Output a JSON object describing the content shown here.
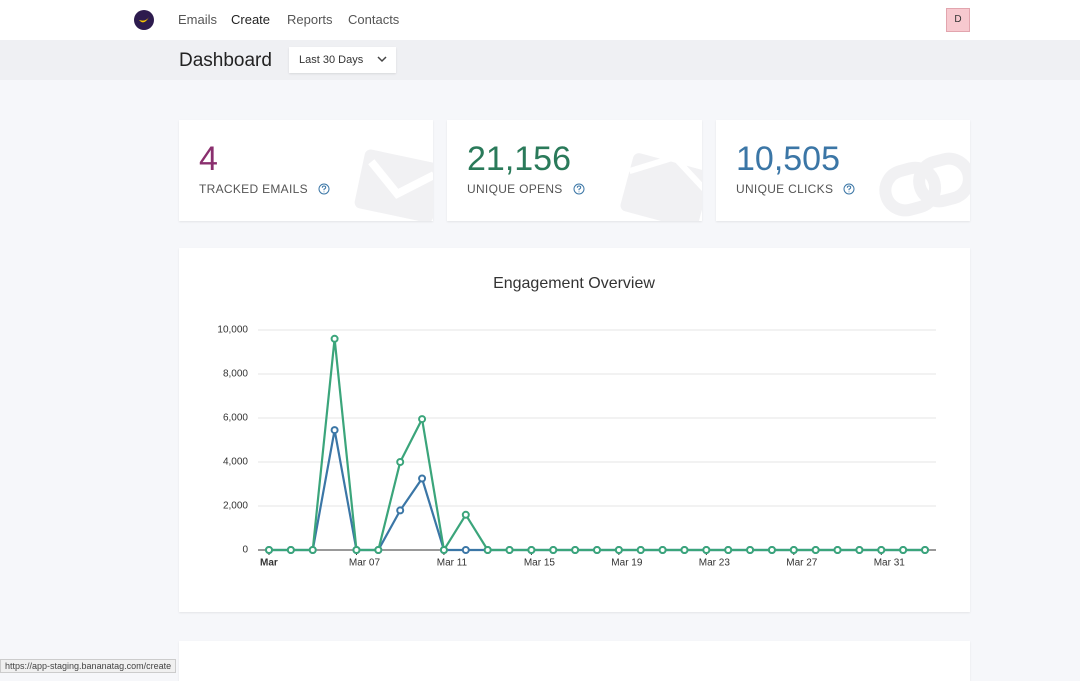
{
  "nav": {
    "links": [
      "Emails",
      "Create",
      "Reports",
      "Contacts"
    ],
    "avatar": "D"
  },
  "header": {
    "title": "Dashboard",
    "range": "Last 30 Days"
  },
  "stats": [
    {
      "value": "4",
      "label": "TRACKED EMAILS"
    },
    {
      "value": "21,156",
      "label": "UNIQUE OPENS"
    },
    {
      "value": "10,505",
      "label": "UNIQUE CLICKS"
    }
  ],
  "status": "https://app-staging.bananatag.com/create",
  "chart_data": {
    "type": "line",
    "title": "Engagement Overview",
    "x": [
      3,
      4,
      5,
      6,
      7,
      8,
      9,
      10,
      11,
      12,
      13,
      14,
      15,
      16,
      17,
      18,
      19,
      20,
      21,
      22,
      23,
      24,
      25,
      26,
      27,
      28,
      29,
      30,
      31,
      32,
      33
    ],
    "series": [
      {
        "color": "#3b76a6",
        "values": [
          0,
          0,
          0,
          5450,
          0,
          0,
          1800,
          3250,
          0,
          0,
          0,
          0,
          0,
          0,
          0,
          0,
          0,
          0,
          0,
          0,
          0,
          0,
          0,
          0,
          0,
          0,
          0,
          0,
          0,
          0,
          0
        ]
      },
      {
        "color": "#3ba57b",
        "values": [
          0,
          0,
          0,
          9600,
          0,
          0,
          4000,
          5950,
          0,
          1600,
          0,
          0,
          0,
          0,
          0,
          0,
          0,
          0,
          0,
          0,
          0,
          0,
          0,
          0,
          0,
          0,
          0,
          0,
          0,
          0,
          0
        ]
      }
    ],
    "xlim": [
      3,
      33
    ],
    "xticks": [
      {
        "value": 3,
        "label": "Mar"
      },
      {
        "value": 7,
        "label": "Mar 07"
      },
      {
        "value": 11,
        "label": "Mar 11"
      },
      {
        "value": 15,
        "label": "Mar 15"
      },
      {
        "value": 19,
        "label": "Mar 19"
      },
      {
        "value": 23,
        "label": "Mar 23"
      },
      {
        "value": 27,
        "label": "Mar 27"
      },
      {
        "value": 31,
        "label": "Mar 31"
      }
    ],
    "ylim": [
      0,
      10000
    ],
    "yticks": [
      0,
      {
        "value": 2000,
        "label": "2,000"
      },
      {
        "value": 4000,
        "label": "4,000"
      },
      {
        "value": 6000,
        "label": "6,000"
      },
      {
        "value": 8000,
        "label": "8,000"
      },
      {
        "value": 10000,
        "label": "10,000"
      }
    ],
    "grid": true
  }
}
